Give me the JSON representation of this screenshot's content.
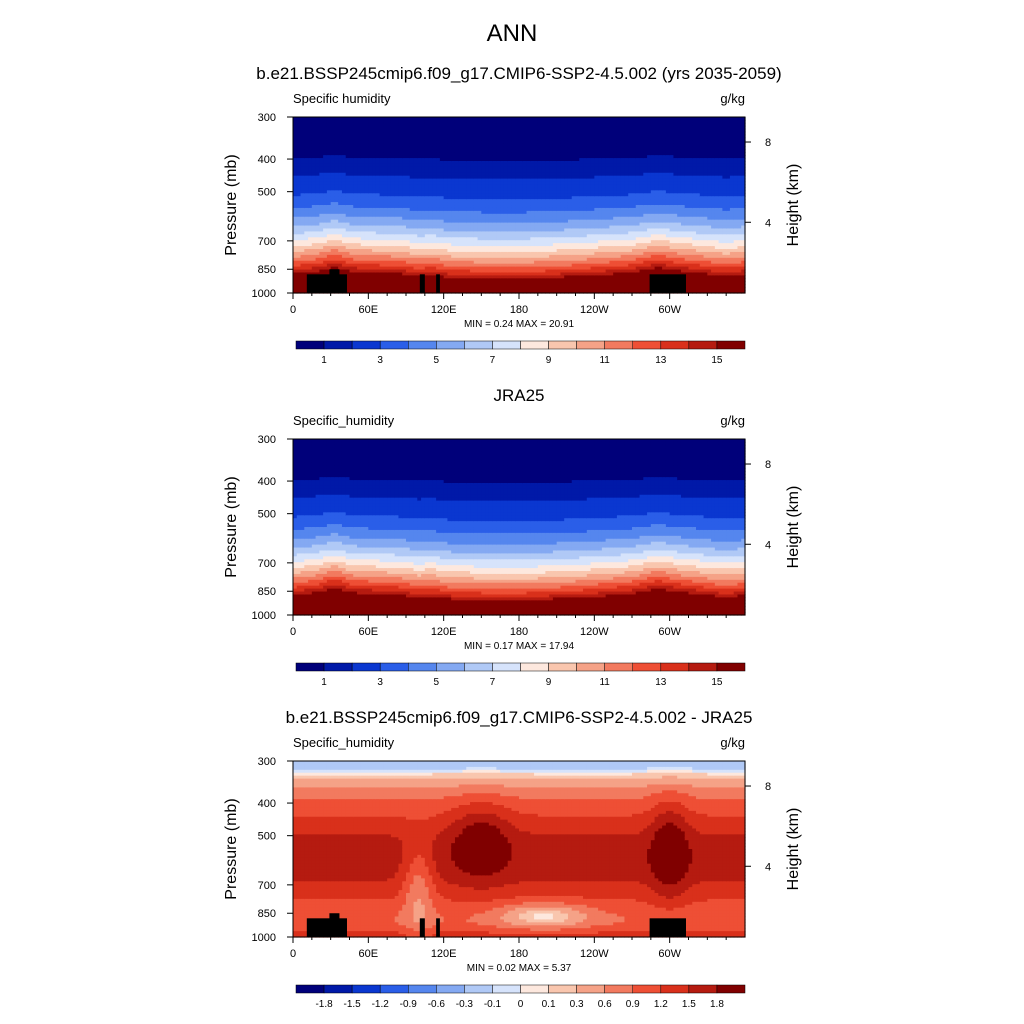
{
  "figure": {
    "main_title": "ANN"
  },
  "colormaps": {
    "abs": [
      "#00007a",
      "#0019a8",
      "#0a37d0",
      "#2a5ee8",
      "#5586ee",
      "#84a9f2",
      "#b0c9f6",
      "#d6e3fb",
      "#fde8de",
      "#f9c6ae",
      "#f5a287",
      "#f27a5f",
      "#ee4f35",
      "#d9301b",
      "#b51b10",
      "#800000"
    ],
    "diff": [
      "#00007a",
      "#0019a8",
      "#0a37d0",
      "#2a5ee8",
      "#5586ee",
      "#84a9f2",
      "#b0c9f6",
      "#d6e3fb",
      "#fde8de",
      "#f9c6ae",
      "#f5a287",
      "#f27a5f",
      "#ee4f35",
      "#d9301b",
      "#b51b10",
      "#800000"
    ]
  },
  "chart_data": [
    {
      "type": "heatmap",
      "title": "b.e21.BSSP245cmip6.f09_g17.CMIP6-SSP2-4.5.002 (yrs 2035-2059)",
      "left_string": "Specific humidity",
      "right_string": "g/kg",
      "ylabel": "Pressure (mb)",
      "ylabel_right": "Height (km)",
      "x_ticks": [
        "0",
        "60E",
        "120E",
        "180",
        "120W",
        "60W"
      ],
      "x_tick_values": [
        0,
        60,
        120,
        180,
        240,
        300
      ],
      "xlim": [
        0,
        360
      ],
      "y_ticks": [
        "300",
        "400",
        "500",
        "700",
        "850",
        "1000"
      ],
      "y_tick_values": [
        300,
        400,
        500,
        700,
        850,
        1000
      ],
      "ylim": [
        300,
        1000
      ],
      "y_scale": "log",
      "right_ticks": [
        "8",
        "4"
      ],
      "right_tick_values": [
        8,
        4
      ],
      "min_max_text": "MIN =   0.24  MAX =  20.91",
      "min": 0.24,
      "max": 20.91,
      "colorbar_labels": [
        "1",
        "3",
        "5",
        "7",
        "9",
        "11",
        "13",
        "15"
      ],
      "levels": [
        0.5,
        1,
        2,
        3,
        4,
        5,
        6,
        7,
        8,
        9,
        10,
        11,
        12,
        13,
        14,
        15
      ],
      "colormap": "abs",
      "topography": true,
      "variant": "model"
    },
    {
      "type": "heatmap",
      "title": "JRA25",
      "left_string": "Specific_humidity",
      "right_string": "g/kg",
      "ylabel": "Pressure (mb)",
      "ylabel_right": "Height (km)",
      "x_ticks": [
        "0",
        "60E",
        "120E",
        "180",
        "120W",
        "60W"
      ],
      "x_tick_values": [
        0,
        60,
        120,
        180,
        240,
        300
      ],
      "xlim": [
        0,
        360
      ],
      "y_ticks": [
        "300",
        "400",
        "500",
        "700",
        "850",
        "1000"
      ],
      "y_tick_values": [
        300,
        400,
        500,
        700,
        850,
        1000
      ],
      "ylim": [
        300,
        1000
      ],
      "y_scale": "log",
      "right_ticks": [
        "8",
        "4"
      ],
      "right_tick_values": [
        8,
        4
      ],
      "min_max_text": "MIN =   0.17  MAX =  17.94",
      "min": 0.17,
      "max": 17.94,
      "colorbar_labels": [
        "1",
        "3",
        "5",
        "7",
        "9",
        "11",
        "13",
        "15"
      ],
      "levels": [
        0.5,
        1,
        2,
        3,
        4,
        5,
        6,
        7,
        8,
        9,
        10,
        11,
        12,
        13,
        14,
        15
      ],
      "colormap": "abs",
      "topography": false,
      "variant": "obs"
    },
    {
      "type": "heatmap",
      "title": "b.e21.BSSP245cmip6.f09_g17.CMIP6-SSP2-4.5.002 - JRA25",
      "left_string": "Specific_humidity",
      "right_string": "g/kg",
      "ylabel": "Pressure (mb)",
      "ylabel_right": "Height (km)",
      "x_ticks": [
        "0",
        "60E",
        "120E",
        "180",
        "120W",
        "60W"
      ],
      "x_tick_values": [
        0,
        60,
        120,
        180,
        240,
        300
      ],
      "xlim": [
        0,
        360
      ],
      "y_ticks": [
        "300",
        "400",
        "500",
        "700",
        "850",
        "1000"
      ],
      "y_tick_values": [
        300,
        400,
        500,
        700,
        850,
        1000
      ],
      "ylim": [
        300,
        1000
      ],
      "y_scale": "log",
      "right_ticks": [
        "8",
        "4"
      ],
      "right_tick_values": [
        8,
        4
      ],
      "min_max_text": "MIN =   0.02  MAX =   5.37",
      "min": 0.02,
      "max": 5.37,
      "colorbar_labels": [
        "-1.8",
        "-1.5",
        "-1.2",
        "-0.9",
        "-0.6",
        "-0.3",
        "-0.1",
        "0",
        "0.1",
        "0.3",
        "0.6",
        "0.9",
        "1.2",
        "1.5",
        "1.8"
      ],
      "levels": [
        -1.8,
        -1.5,
        -1.2,
        -0.9,
        -0.6,
        -0.3,
        -0.1,
        0,
        0.1,
        0.3,
        0.6,
        0.9,
        1.2,
        1.5,
        1.8
      ],
      "colormap": "diff",
      "topography": true,
      "variant": "diff"
    }
  ]
}
